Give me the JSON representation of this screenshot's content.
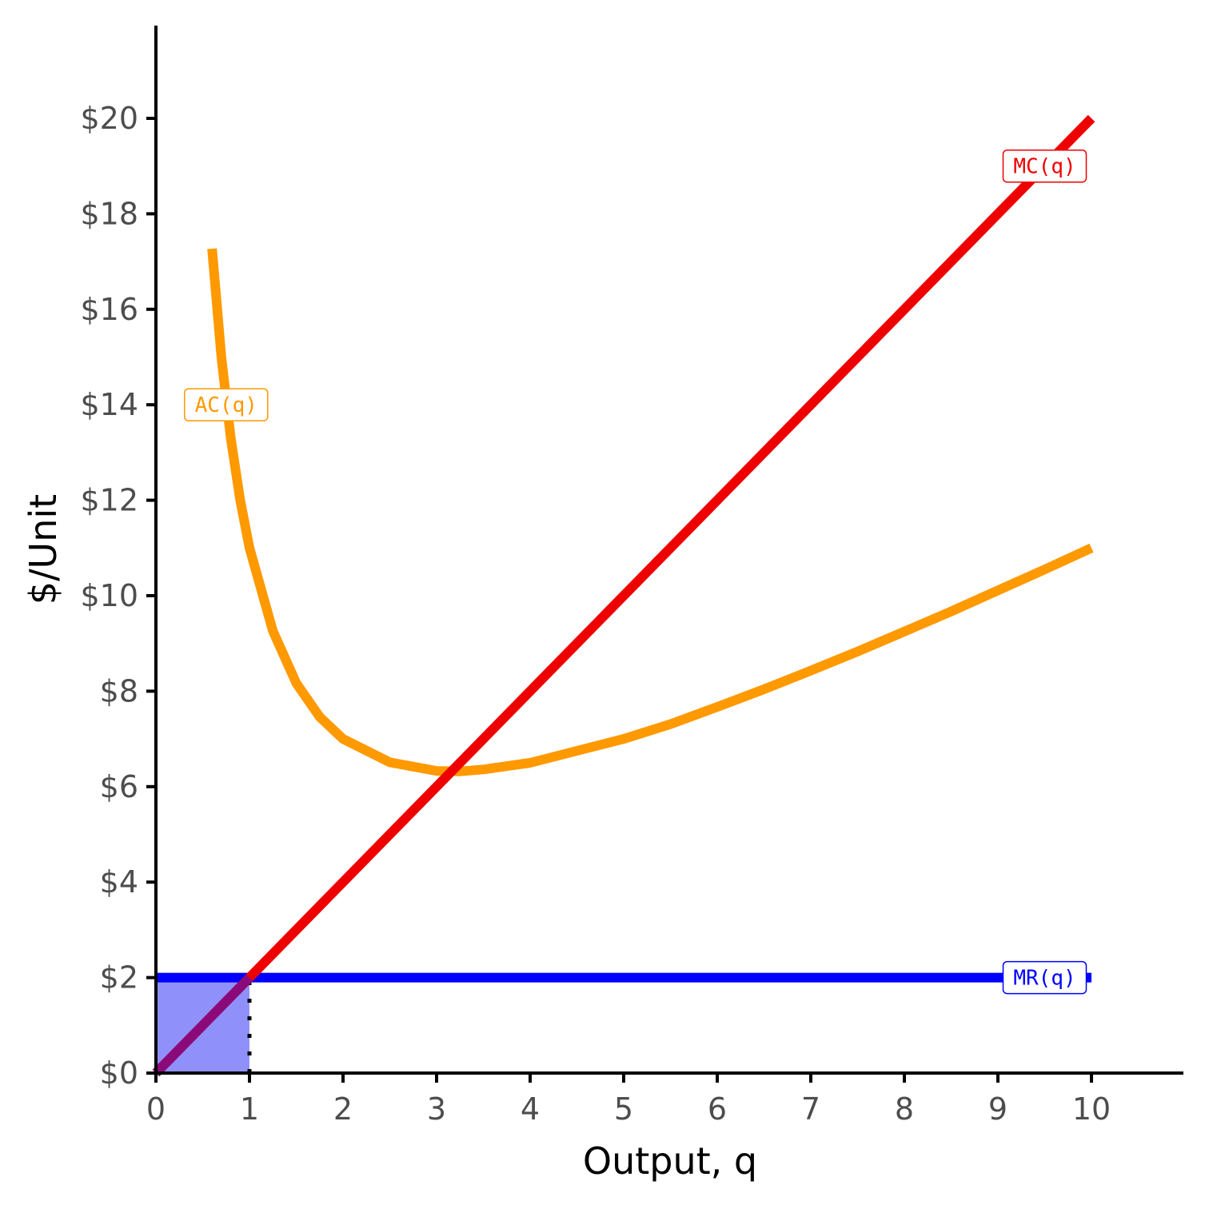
{
  "chart_data": {
    "type": "line",
    "xlabel": "Output, q",
    "ylabel": "$/Unit",
    "xlim": [
      0,
      11
    ],
    "ylim": [
      0,
      22
    ],
    "x_ticks": [
      "0",
      "1",
      "2",
      "3",
      "4",
      "5",
      "6",
      "7",
      "8",
      "9",
      "10"
    ],
    "y_ticks": [
      "$0",
      "$2",
      "$4",
      "$6",
      "$8",
      "$10",
      "$12",
      "$14",
      "$16",
      "$18",
      "$20"
    ],
    "grid": false,
    "series": [
      {
        "name": "MC(q)",
        "color": "#ee0000",
        "x": [
          0,
          10
        ],
        "y": [
          0,
          20
        ]
      },
      {
        "name": "AC(q)",
        "color": "#ff9900",
        "x": [
          0.6,
          0.7,
          0.8,
          0.9,
          1.0,
          1.25,
          1.5,
          1.75,
          2.0,
          2.5,
          3.0,
          3.25,
          3.5,
          4.0,
          4.5,
          5.0,
          5.5,
          6.0,
          6.5,
          7.0,
          7.5,
          8.0,
          8.5,
          9.0,
          9.5,
          10.0
        ],
        "y": [
          17.27,
          14.99,
          13.3,
          12.01,
          11.0,
          9.26,
          8.17,
          7.46,
          7.0,
          6.51,
          6.33,
          6.32,
          6.36,
          6.5,
          6.75,
          7.0,
          7.31,
          7.67,
          8.04,
          8.43,
          8.83,
          9.25,
          9.67,
          10.11,
          10.55,
          11.0
        ]
      },
      {
        "name": "MR(q)",
        "color": "#0000ff",
        "x": [
          0,
          10
        ],
        "y": [
          2,
          2
        ]
      }
    ],
    "shaded_region": {
      "x": [
        0,
        1
      ],
      "y": [
        0,
        2
      ],
      "color": "#9090fa"
    },
    "reference_line": {
      "x": 1,
      "y": [
        0,
        2
      ],
      "style": "dotted"
    },
    "annotations": [
      {
        "text": "MC(q)",
        "x": 9.5,
        "y": 19.0,
        "color": "#ee0000"
      },
      {
        "text": "AC(q)",
        "x": 0.75,
        "y": 14.0,
        "color": "#ff9900"
      },
      {
        "text": "MR(q)",
        "x": 9.5,
        "y": 2.0,
        "color": "#0000ff"
      }
    ]
  }
}
